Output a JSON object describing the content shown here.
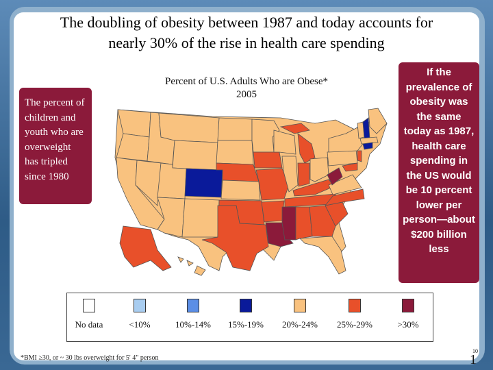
{
  "title": {
    "line1": "The doubling of obesity between 1987 and today accounts for",
    "line2": "nearly 30% of the rise in health care spending"
  },
  "map": {
    "title_line1": "Percent of U.S. Adults Who are Obese*",
    "title_line2": "2005"
  },
  "left_callout": {
    "text": "The percent of children and youth who are overweight has tripled since 1980"
  },
  "right_callout": {
    "text": "If the prevalence of obesity was the same today as 1987, health care spending in the US would be 10 percent lower per person—about $200 billion less"
  },
  "legend": {
    "items": [
      {
        "label": "No data",
        "color": "#ffffff"
      },
      {
        "label": "<10%",
        "color": "#a9cdf0"
      },
      {
        "label": "10%-14%",
        "color": "#5b8ee6"
      },
      {
        "label": "15%-19%",
        "color": "#0a1a9a"
      },
      {
        "label": "20%-24%",
        "color": "#f9c27f"
      },
      {
        "label": "25%-29%",
        "color": "#e8502a"
      },
      {
        "label": ">30%",
        "color": "#8b1a3a"
      }
    ]
  },
  "footnote": "*BMI ≥30, or ~ 30 lbs overweight for 5' 4\" person",
  "page_number": "1",
  "page_small": "10"
}
